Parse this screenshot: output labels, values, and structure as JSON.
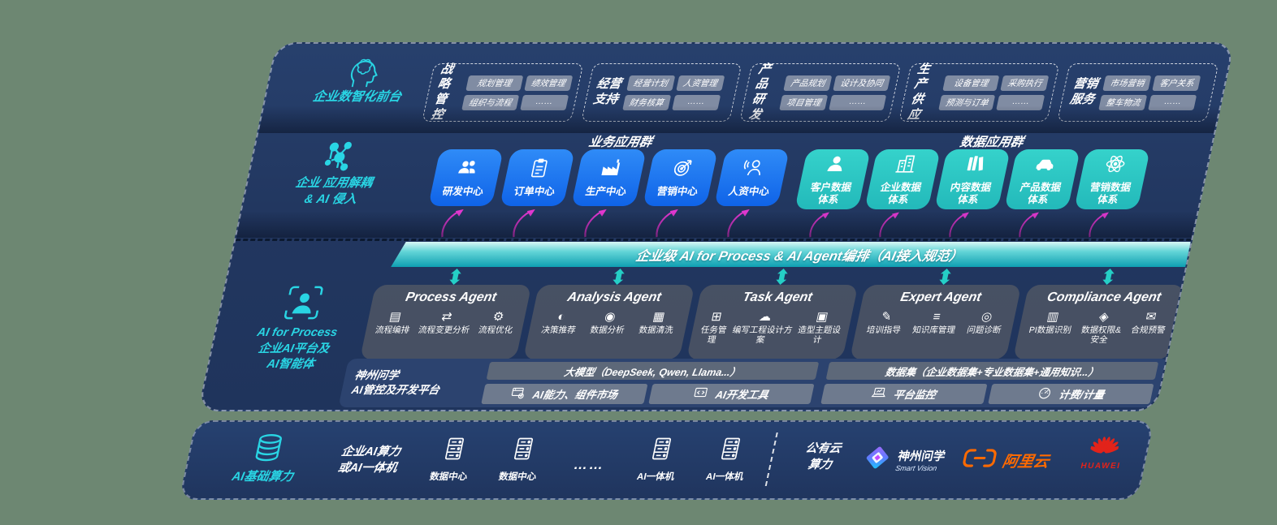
{
  "colors": {
    "page_background": "#6d8772",
    "panel_navy": "#223760",
    "accent_cyan": "#29d5e4",
    "business_card_blue": "#1a74f0",
    "data_card_teal": "#2bc7c4",
    "banner_teal": "#0f9fb2",
    "connector_magenta": "#e438d2",
    "connector_teal": "#25cfc6",
    "alibaba_orange": "#ff6a00",
    "huawei_red": "#e2231a"
  },
  "front_layer": {
    "label": "企业数智化前台",
    "groups": [
      {
        "name": "战略\n管控",
        "tags": [
          "规划管理",
          "绩效管理",
          "组织与流程",
          "……"
        ]
      },
      {
        "name": "经营\n支持",
        "tags": [
          "经营计划",
          "人资管理",
          "财务核算",
          "……"
        ]
      },
      {
        "name": "产品\n研发",
        "tags": [
          "产品规划",
          "设计及协同",
          "项目管理",
          "……"
        ]
      },
      {
        "name": "生产\n供应",
        "tags": [
          "设备管理",
          "采购执行",
          "预测与订单",
          "……"
        ]
      },
      {
        "name": "营销\n服务",
        "tags": [
          "市场营销",
          "客户关系",
          "整车物流",
          "……"
        ]
      }
    ]
  },
  "app_layer": {
    "label": "企业 应用解耦\n& AI 侵入",
    "business_group_title": "业务应用群",
    "data_group_title": "数据应用群",
    "business_apps": [
      {
        "label": "研发中心",
        "icon": "people-icon"
      },
      {
        "label": "订单中心",
        "icon": "clipboard-icon"
      },
      {
        "label": "生产中心",
        "icon": "factory-icon"
      },
      {
        "label": "营销中心",
        "icon": "target-icon"
      },
      {
        "label": "人资中心",
        "icon": "person-waves-icon"
      }
    ],
    "data_apps": [
      {
        "label": "客户数据\n体系",
        "icon": "person-icon"
      },
      {
        "label": "企业数据\n体系",
        "icon": "building-icon"
      },
      {
        "label": "内容数据\n体系",
        "icon": "books-icon"
      },
      {
        "label": "产品数据\n体系",
        "icon": "car-icon"
      },
      {
        "label": "营销数据\n体系",
        "icon": "atom-icon"
      }
    ]
  },
  "orchestration_banner": {
    "title": "企业级 AI for Process & AI Agent编排（AI接入规范）"
  },
  "agent_layer": {
    "label": "AI for Process\n企业AI平台及\nAI智能体",
    "agents": [
      {
        "title": "Process Agent",
        "items": [
          {
            "label": "流程编排",
            "icon": "workflow-icon"
          },
          {
            "label": "流程变更分析",
            "icon": "change-analysis-icon"
          },
          {
            "label": "流程优化",
            "icon": "optimize-icon"
          }
        ]
      },
      {
        "title": "Analysis Agent",
        "items": [
          {
            "label": "决策推荐",
            "icon": "decision-icon"
          },
          {
            "label": "数据分析",
            "icon": "data-analysis-icon"
          },
          {
            "label": "数据清洗",
            "icon": "data-clean-icon"
          }
        ]
      },
      {
        "title": "Task Agent",
        "items": [
          {
            "label": "任务管理",
            "icon": "task-manage-icon"
          },
          {
            "label": "编写工程设计方案",
            "icon": "engineering-doc-icon"
          },
          {
            "label": "造型主题设计",
            "icon": "styling-design-icon"
          }
        ]
      },
      {
        "title": "Expert Agent",
        "items": [
          {
            "label": "培训指导",
            "icon": "training-icon"
          },
          {
            "label": "知识库管理",
            "icon": "knowledge-base-icon"
          },
          {
            "label": "问题诊断",
            "icon": "diagnosis-icon"
          }
        ]
      },
      {
        "title": "Compliance Agent",
        "items": [
          {
            "label": "PI数据识别",
            "icon": "pi-recognition-icon"
          },
          {
            "label": "数据权限&\n安全",
            "icon": "data-permission-icon"
          },
          {
            "label": "合规预警",
            "icon": "compliance-alert-icon"
          }
        ]
      }
    ]
  },
  "platform_layer": {
    "label": "神州问学\nAI管控及开发平台",
    "model_bar": "大模型（DeepSeek, Qwen, Llama...）",
    "left_tools": [
      {
        "label": "AI能力、组件市场",
        "icon": "components-market-icon"
      },
      {
        "label": "AI开发工具",
        "icon": "dev-tools-icon"
      }
    ],
    "dataset_bar": "数据集（企业数据集+专业数据集+通用知识...）",
    "right_tools": [
      {
        "label": "平台监控",
        "icon": "monitor-icon"
      },
      {
        "label": "计费/计量",
        "icon": "metering-icon"
      }
    ]
  },
  "compute_layer": {
    "label": "AI基础算力",
    "enterprise_label": "企业AI算力\n或AI一体机",
    "nodes": [
      {
        "label": "数据中心",
        "icon": "server-icon"
      },
      {
        "label": "数据中心",
        "icon": "server-icon"
      },
      {
        "label": "……",
        "icon": ""
      },
      {
        "label": "AI一体机",
        "icon": "server-icon"
      },
      {
        "label": "AI一体机",
        "icon": "server-icon"
      }
    ],
    "public_cloud_label": "公有云\n算力",
    "vendors": [
      {
        "name": "神州问学",
        "sub": "Smart Vision",
        "icon": "shenzhou-diamond-icon"
      },
      {
        "name": "阿里云",
        "icon": "alibaba-cloud-icon"
      },
      {
        "name": "HUAWEI",
        "icon": "huawei-flower-icon"
      }
    ]
  }
}
